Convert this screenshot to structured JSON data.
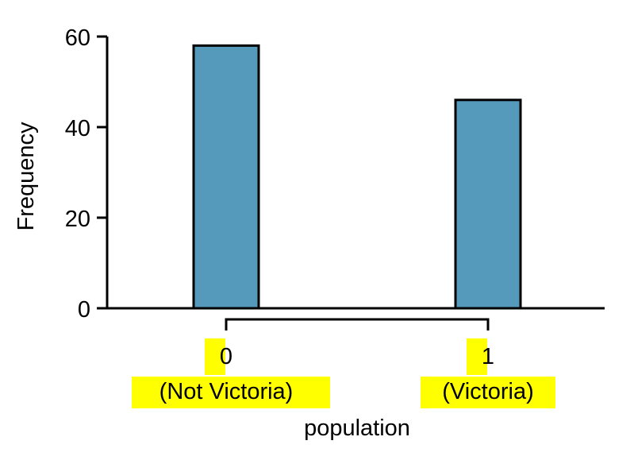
{
  "chart_data": {
    "type": "bar",
    "categories": [
      "0",
      "1"
    ],
    "category_sublabels": [
      "(Not Victoria)",
      "(Victoria)"
    ],
    "values": [
      58,
      46
    ],
    "xlabel": "population",
    "ylabel": "Frequency",
    "ylim": [
      0,
      60
    ],
    "yticks": [
      "0",
      "20",
      "40",
      "60"
    ],
    "grid": false,
    "legend": "none",
    "bar_color": "#5599bb",
    "bar_edge_color": "#000000",
    "highlight_color": "#ffff00"
  }
}
